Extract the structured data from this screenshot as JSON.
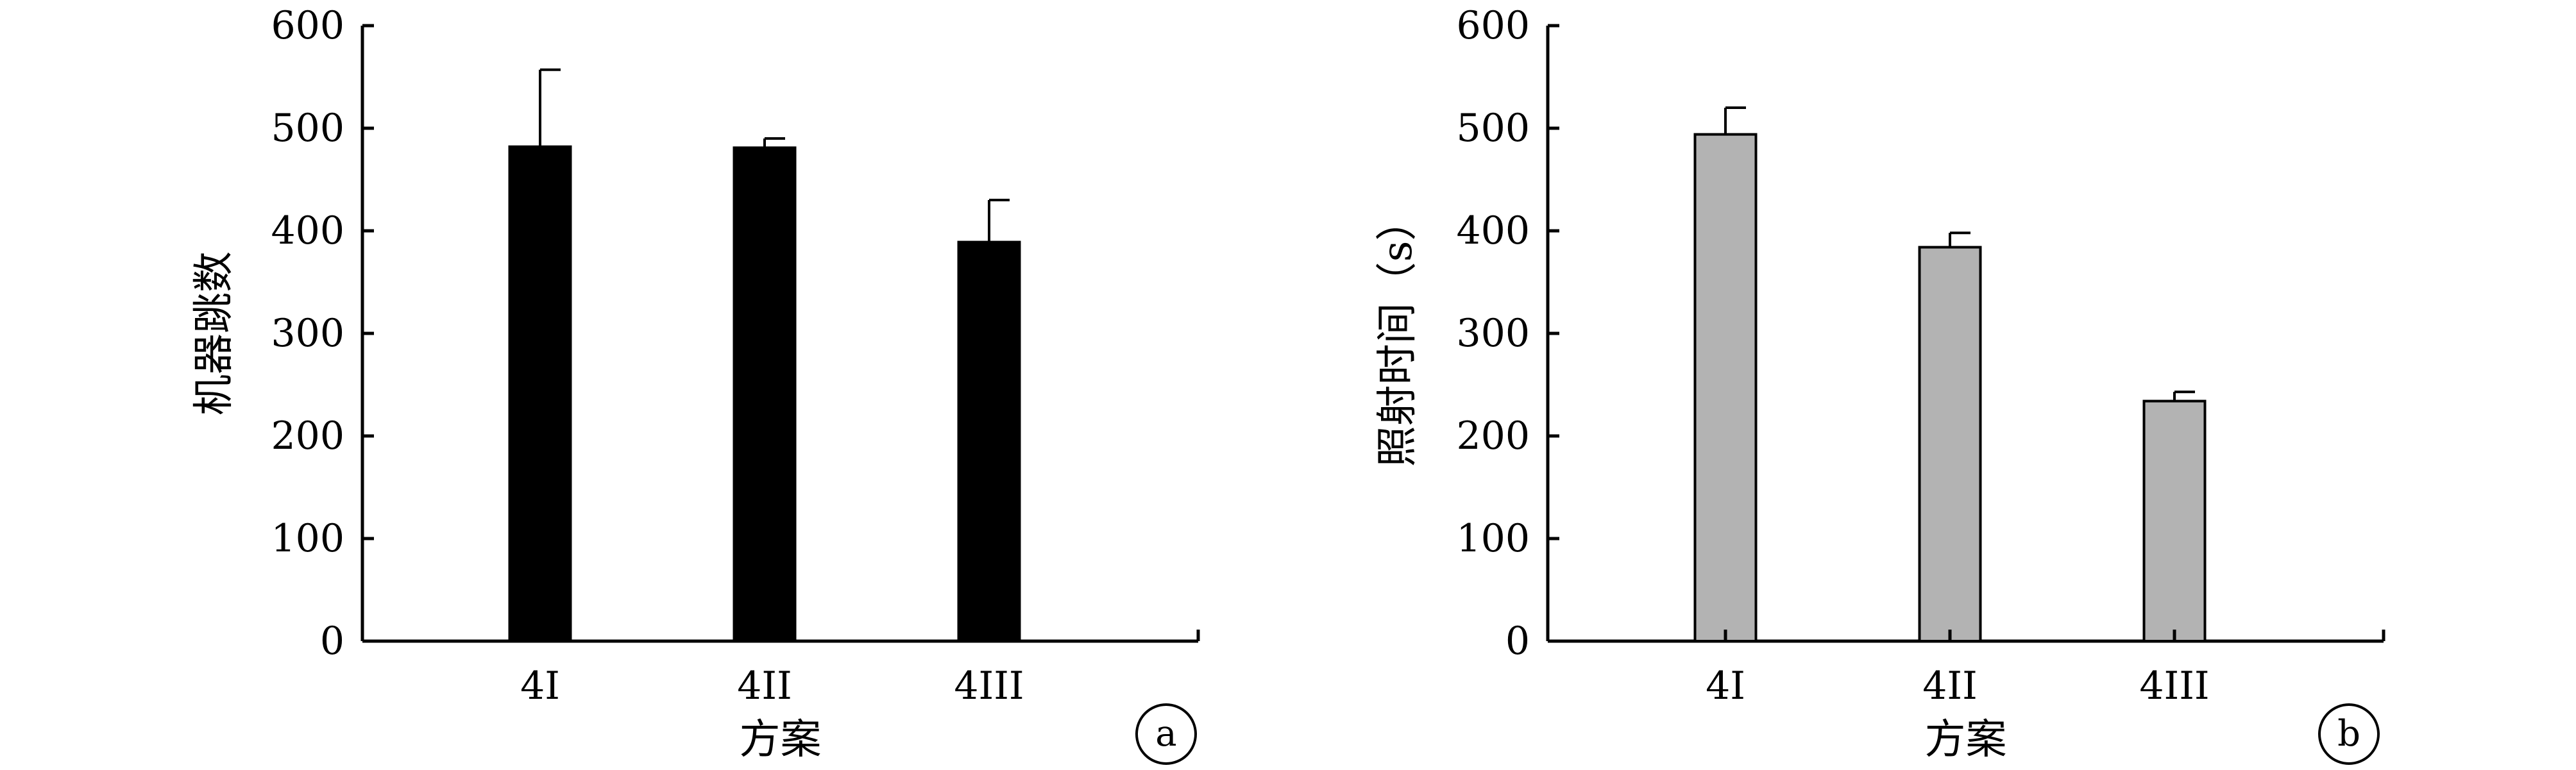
{
  "chart_data": [
    {
      "type": "bar",
      "panel_label": "a",
      "categories": [
        "4I",
        "4II",
        "4III"
      ],
      "values": [
        482,
        481,
        389
      ],
      "error_upper": [
        557,
        490,
        430
      ],
      "xlabel": "方案",
      "ylabel": "机器跳数",
      "ylim": [
        0,
        600
      ],
      "yticks": [
        "0",
        "100",
        "200",
        "300",
        "400",
        "500",
        "600"
      ],
      "bar_color": "#000000",
      "grid": false,
      "legend": "none"
    },
    {
      "type": "bar",
      "panel_label": "b",
      "categories": [
        "4I",
        "4II",
        "4III"
      ],
      "values": [
        494,
        384,
        234
      ],
      "error_upper": [
        520,
        398,
        243
      ],
      "xlabel": "方案",
      "ylabel": "照射时间（s）",
      "ylim": [
        0,
        600
      ],
      "yticks": [
        "0",
        "100",
        "200",
        "300",
        "400",
        "500",
        "600"
      ],
      "bar_color": "#b3b3b3",
      "grid": false,
      "legend": "none"
    }
  ]
}
